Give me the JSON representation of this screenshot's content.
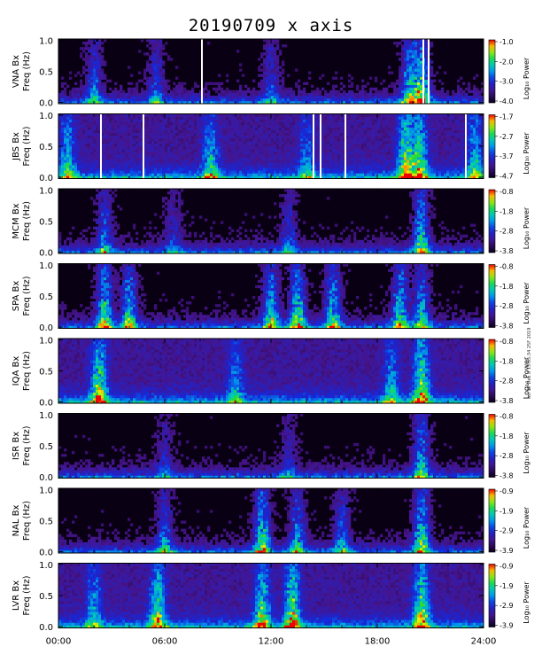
{
  "title": "20190709  x axis",
  "credit": "asi ST  Dee  8 13:05:34 25F 2019",
  "chart_data": {
    "type": "heatmap",
    "x_ticks": [
      "00:00",
      "06:00",
      "12:00",
      "18:00",
      "24:00"
    ],
    "x_range_hours": [
      0,
      24
    ],
    "y_ticks": [
      "0.0",
      "0.5",
      "1.0"
    ],
    "y_range_hz": [
      0,
      1
    ],
    "ylabel": "Freq (Hz)",
    "colorbar_label": "Log₁₀ Power",
    "panels": [
      {
        "station": "VNA Bx",
        "cbar_ticks": [
          "-1.0",
          "-2.0",
          "-3.0",
          "-4.0"
        ],
        "bg": "dark",
        "events": [
          {
            "t": 2.0,
            "s": 0.6
          },
          {
            "t": 5.5,
            "s": 0.5
          },
          {
            "t": 12.0,
            "s": 0.5
          },
          {
            "t": 19.8,
            "s": 0.8
          },
          {
            "t": 20.5,
            "s": 1.0
          }
        ],
        "white_gaps": [
          8.1,
          20.6,
          20.9
        ]
      },
      {
        "station": "JBS Bx",
        "cbar_ticks": [
          "-1.7",
          "-2.7",
          "-3.7",
          "-4.7"
        ],
        "bg": "mid",
        "events": [
          {
            "t": 0.5,
            "s": 0.7
          },
          {
            "t": 8.6,
            "s": 0.7
          },
          {
            "t": 14.0,
            "s": 0.5
          },
          {
            "t": 19.6,
            "s": 1.0
          },
          {
            "t": 20.4,
            "s": 0.9
          },
          {
            "t": 23.5,
            "s": 0.7
          }
        ],
        "white_gaps": [
          2.4,
          4.8,
          14.4,
          14.8,
          16.2,
          23.0
        ]
      },
      {
        "station": "MCM Bx",
        "cbar_ticks": [
          "-0.8",
          "-1.8",
          "-2.8",
          "-3.8"
        ],
        "bg": "dark",
        "events": [
          {
            "t": 2.6,
            "s": 0.6
          },
          {
            "t": 6.5,
            "s": 0.4
          },
          {
            "t": 13.0,
            "s": 0.5
          },
          {
            "t": 20.5,
            "s": 0.9
          }
        ],
        "white_gaps": []
      },
      {
        "station": "SPA Bx",
        "cbar_ticks": [
          "-0.8",
          "-1.8",
          "-2.8",
          "-3.8"
        ],
        "bg": "dark",
        "events": [
          {
            "t": 2.6,
            "s": 1.0
          },
          {
            "t": 4.0,
            "s": 0.9
          },
          {
            "t": 12.0,
            "s": 0.9
          },
          {
            "t": 13.5,
            "s": 1.0
          },
          {
            "t": 15.5,
            "s": 0.9
          },
          {
            "t": 19.3,
            "s": 0.9
          },
          {
            "t": 20.5,
            "s": 0.8
          }
        ],
        "white_gaps": []
      },
      {
        "station": "IQA Bx",
        "cbar_ticks": [
          "-0.8",
          "-1.8",
          "-2.8",
          "-3.8"
        ],
        "bg": "mid",
        "events": [
          {
            "t": 2.3,
            "s": 1.0
          },
          {
            "t": 10.0,
            "s": 0.5
          },
          {
            "t": 18.8,
            "s": 0.6
          },
          {
            "t": 20.5,
            "s": 1.0
          }
        ],
        "white_gaps": []
      },
      {
        "station": "ISR Bx",
        "cbar_ticks": [
          "-0.8",
          "-1.8",
          "-2.8",
          "-3.8"
        ],
        "bg": "dark",
        "events": [
          {
            "t": 6.0,
            "s": 0.4
          },
          {
            "t": 13.0,
            "s": 0.4
          },
          {
            "t": 20.5,
            "s": 0.8
          }
        ],
        "white_gaps": []
      },
      {
        "station": "NAL Bx",
        "cbar_ticks": [
          "-0.9",
          "-1.9",
          "-2.9",
          "-3.9"
        ],
        "bg": "dark",
        "events": [
          {
            "t": 6.0,
            "s": 0.6
          },
          {
            "t": 11.5,
            "s": 1.0
          },
          {
            "t": 13.5,
            "s": 0.7
          },
          {
            "t": 16.0,
            "s": 0.6
          },
          {
            "t": 20.5,
            "s": 1.0
          }
        ],
        "white_gaps": []
      },
      {
        "station": "LVR Bx",
        "cbar_ticks": [
          "-0.9",
          "-1.9",
          "-2.9",
          "-3.9"
        ],
        "bg": "mid",
        "events": [
          {
            "t": 2.0,
            "s": 0.6
          },
          {
            "t": 5.6,
            "s": 0.9
          },
          {
            "t": 11.5,
            "s": 0.9
          },
          {
            "t": 13.2,
            "s": 1.0
          },
          {
            "t": 20.5,
            "s": 1.0
          }
        ],
        "white_gaps": []
      }
    ]
  }
}
